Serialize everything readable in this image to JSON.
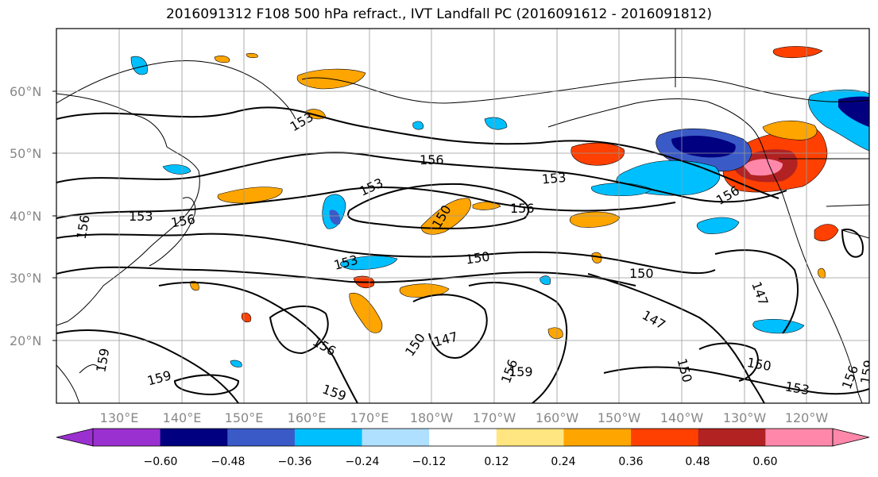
{
  "title": "2016091312 F108 500 hPa refract., IVT Landfall PC (2016091612 - 2016091812)",
  "lat_labels": [
    "60°N",
    "50°N",
    "40°N",
    "30°N",
    "20°N"
  ],
  "lon_labels": [
    "130°E",
    "140°E",
    "150°E",
    "160°E",
    "170°E",
    "180°W",
    "170°W",
    "160°W",
    "150°W",
    "140°W",
    "130°W",
    "120°W"
  ],
  "contour_labels": [
    "156",
    "153",
    "156",
    "150",
    "153",
    "156",
    "153",
    "156",
    "150",
    "153",
    "150",
    "147",
    "147",
    "147",
    "150",
    "156",
    "159",
    "159",
    "159",
    "153",
    "156",
    "150",
    "156",
    "156",
    "159",
    "150",
    "153",
    "159"
  ],
  "colorbar": {
    "colors": [
      "#9b30d0",
      "#000080",
      "#3a5bc7",
      "#00bfff",
      "#b0e0ff",
      "#ffffff",
      "#ffe680",
      "#ffa500",
      "#ff4000",
      "#b22222",
      "#ff88aa"
    ],
    "tick_labels": [
      "−0.60",
      "−0.48",
      "−0.36",
      "−0.24",
      "−0.12",
      "0.12",
      "0.24",
      "0.36",
      "0.48",
      "0.60"
    ]
  }
}
